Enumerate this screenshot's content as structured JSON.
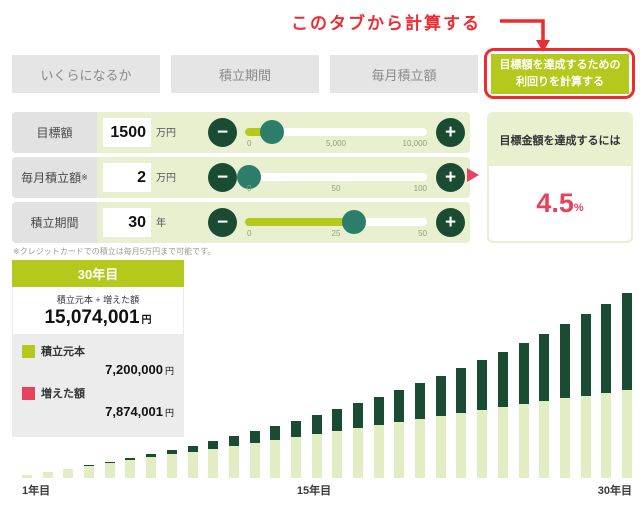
{
  "annotation": {
    "text": "このタブから計算する"
  },
  "tabs": [
    {
      "label": "いくらになるか"
    },
    {
      "label": "積立期間"
    },
    {
      "label": "毎月積立額"
    },
    {
      "label_line1": "目標額を達成するための",
      "label_line2": "利回りを計算する",
      "active": true
    }
  ],
  "controls": {
    "rows": [
      {
        "label": "目標額",
        "sup": "",
        "value": "1500",
        "unit": "万円",
        "slider_percent": 15,
        "ticks": [
          "0",
          "5,000",
          "10,000"
        ]
      },
      {
        "label": "毎月積立額",
        "sup": "※",
        "value": "2",
        "unit": "万円",
        "slider_percent": 2,
        "ticks": [
          "0",
          "50",
          "100"
        ]
      },
      {
        "label": "積立期間",
        "sup": "",
        "value": "30",
        "unit": "年",
        "slider_percent": 60,
        "ticks": [
          "0",
          "25",
          "50"
        ]
      }
    ],
    "note": "※クレジットカードでの積立は毎月5万円まで可能です。"
  },
  "result_panel": {
    "title": "目標金額を達成するには",
    "value": "4.5",
    "unit": "%"
  },
  "summary_box": {
    "year_label": "30年目",
    "total_label": "積立元本 + 増えた額",
    "total_value": "15,074,001",
    "total_unit": "円",
    "legend": [
      {
        "label": "積立元本",
        "value": "7,200,000",
        "unit": "円",
        "swatch": "#b5c91c"
      },
      {
        "label": "増えた額",
        "value": "7,874,001",
        "unit": "円",
        "swatch": "#e8415e"
      }
    ]
  },
  "chart_data": {
    "type": "bar",
    "stacked": true,
    "x": [
      1,
      2,
      3,
      4,
      5,
      6,
      7,
      8,
      9,
      10,
      11,
      12,
      13,
      14,
      15,
      16,
      17,
      18,
      19,
      20,
      21,
      22,
      23,
      24,
      25,
      26,
      27,
      28,
      29,
      30
    ],
    "x_axis_labels": [
      "1年目",
      "15年目",
      "30年目"
    ],
    "series": [
      {
        "name": "積立元本",
        "color": "#e2edc4",
        "values": [
          240000,
          480000,
          720000,
          960000,
          1200000,
          1440000,
          1680000,
          1920000,
          2160000,
          2400000,
          2640000,
          2880000,
          3120000,
          3360000,
          3600000,
          3840000,
          4080000,
          4320000,
          4560000,
          4800000,
          5040000,
          5280000,
          5520000,
          5760000,
          6000000,
          6240000,
          6480000,
          6720000,
          6960000,
          7200000
        ]
      },
      {
        "name": "増えた額",
        "color": "#1a4b33",
        "values": [
          4952,
          20980,
          48585,
          88337,
          140984,
          206645,
          286306,
          380479,
          489895,
          615400,
          757172,
          916493,
          1094054,
          1290545,
          1507344,
          1743763,
          2002759,
          2284530,
          2590060,
          2921030,
          3277433,
          3661145,
          4073449,
          4515528,
          4988858,
          5493836,
          6033814,
          6609383,
          7222316,
          7874001
        ]
      }
    ],
    "y_max": 15074001,
    "legend_position": "top-left-box",
    "grid": false
  },
  "icons": {
    "minus": "−",
    "plus": "+"
  },
  "colors": {
    "accent": "#b5c91c",
    "dark_green": "#1a4b33",
    "teal": "#2c7d69",
    "pale_green": "#e9f0d0",
    "bar_light": "#e2edc4",
    "pink": "#e8415e",
    "red": "#ee2b31"
  }
}
